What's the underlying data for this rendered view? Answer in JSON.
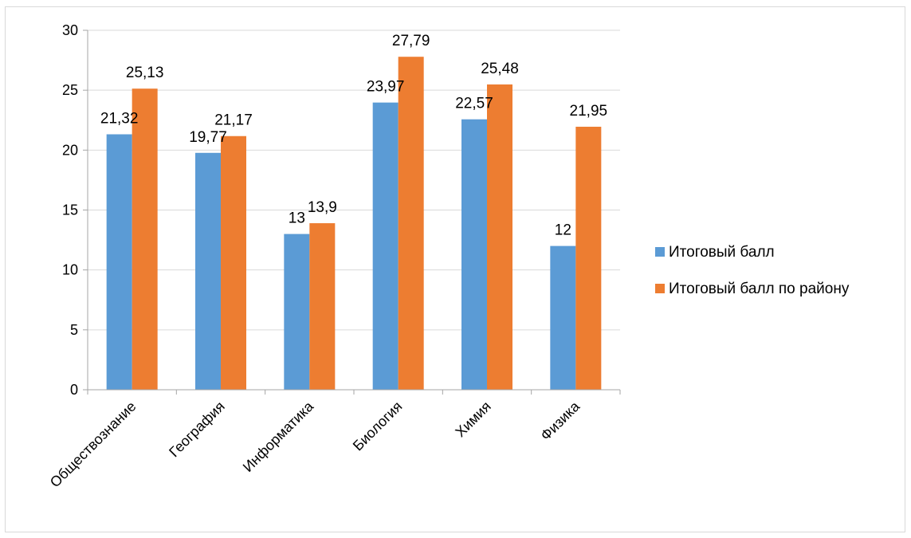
{
  "chart_data": {
    "type": "bar",
    "categories": [
      "Обществознание",
      "География",
      "Информатика",
      "Биология",
      "Химия",
      "Физика"
    ],
    "series": [
      {
        "name": "Итоговый балл",
        "color": "#5b9bd5",
        "values": [
          21.32,
          19.77,
          13,
          23.97,
          22.57,
          12
        ],
        "labels": [
          "21,32",
          "19,77",
          "13",
          "23,97",
          "22,57",
          "12"
        ]
      },
      {
        "name": "Итоговый балл по району",
        "color": "#ed7d31",
        "values": [
          25.13,
          21.17,
          13.9,
          27.79,
          25.48,
          21.95
        ],
        "labels": [
          "25,13",
          "21,17",
          "13,9",
          "27,79",
          "25,48",
          "21,95"
        ]
      }
    ],
    "ylim": [
      0,
      30
    ],
    "yticks": [
      0,
      5,
      10,
      15,
      20,
      25,
      30
    ],
    "grid": true,
    "legend_position": "right"
  }
}
